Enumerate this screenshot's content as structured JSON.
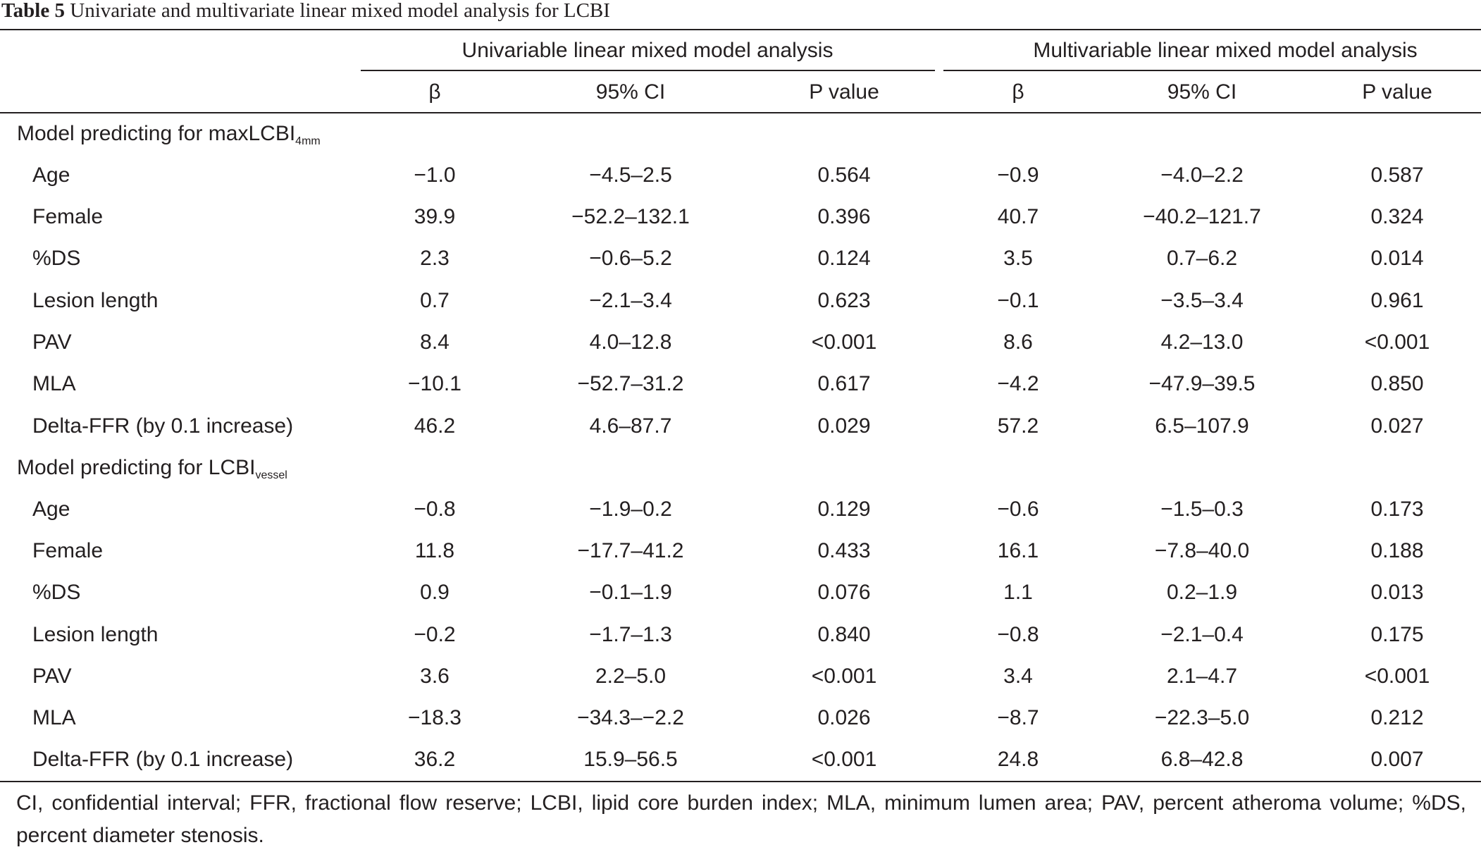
{
  "caption": {
    "label": "Table 5",
    "title": " Univariate and multivariate linear mixed model analysis for LCBI"
  },
  "header": {
    "group_univariable": "Univariable linear mixed model analysis",
    "group_multivariable": "Multivariable linear mixed model analysis",
    "uni_beta": "β",
    "uni_ci": "95% CI",
    "uni_p": "P value",
    "multi_beta": "β",
    "multi_ci": "95% CI",
    "multi_p": "P value"
  },
  "sections": [
    {
      "title": "Model predicting for maxLCBI",
      "title_sub": "4mm",
      "rows": [
        {
          "variable": "Age",
          "uni_beta": "−1.0",
          "uni_ci": "−4.5–2.5",
          "uni_p": "0.564",
          "multi_beta": "−0.9",
          "multi_ci": "−4.0–2.2",
          "multi_p": "0.587"
        },
        {
          "variable": "Female",
          "uni_beta": "39.9",
          "uni_ci": "−52.2–132.1",
          "uni_p": "0.396",
          "multi_beta": "40.7",
          "multi_ci": "−40.2–121.7",
          "multi_p": "0.324"
        },
        {
          "variable": "%DS",
          "uni_beta": "2.3",
          "uni_ci": "−0.6–5.2",
          "uni_p": "0.124",
          "multi_beta": "3.5",
          "multi_ci": "0.7–6.2",
          "multi_p": "0.014"
        },
        {
          "variable": "Lesion length",
          "uni_beta": "0.7",
          "uni_ci": "−2.1–3.4",
          "uni_p": "0.623",
          "multi_beta": "−0.1",
          "multi_ci": "−3.5–3.4",
          "multi_p": "0.961"
        },
        {
          "variable": "PAV",
          "uni_beta": "8.4",
          "uni_ci": "4.0–12.8",
          "uni_p": "<0.001",
          "multi_beta": "8.6",
          "multi_ci": "4.2–13.0",
          "multi_p": "<0.001"
        },
        {
          "variable": "MLA",
          "uni_beta": "−10.1",
          "uni_ci": "−52.7–31.2",
          "uni_p": "0.617",
          "multi_beta": "−4.2",
          "multi_ci": "−47.9–39.5",
          "multi_p": "0.850"
        },
        {
          "variable": "Delta-FFR (by 0.1 increase)",
          "uni_beta": "46.2",
          "uni_ci": "4.6–87.7",
          "uni_p": "0.029",
          "multi_beta": "57.2",
          "multi_ci": "6.5–107.9",
          "multi_p": "0.027"
        }
      ]
    },
    {
      "title": "Model predicting for LCBI",
      "title_sub": "vessel",
      "rows": [
        {
          "variable": "Age",
          "uni_beta": "−0.8",
          "uni_ci": "−1.9–0.2",
          "uni_p": "0.129",
          "multi_beta": "−0.6",
          "multi_ci": "−1.5–0.3",
          "multi_p": "0.173"
        },
        {
          "variable": "Female",
          "uni_beta": "11.8",
          "uni_ci": "−17.7–41.2",
          "uni_p": "0.433",
          "multi_beta": "16.1",
          "multi_ci": "−7.8–40.0",
          "multi_p": "0.188"
        },
        {
          "variable": "%DS",
          "uni_beta": "0.9",
          "uni_ci": "−0.1–1.9",
          "uni_p": "0.076",
          "multi_beta": "1.1",
          "multi_ci": "0.2–1.9",
          "multi_p": "0.013"
        },
        {
          "variable": "Lesion length",
          "uni_beta": "−0.2",
          "uni_ci": "−1.7–1.3",
          "uni_p": "0.840",
          "multi_beta": "−0.8",
          "multi_ci": "−2.1–0.4",
          "multi_p": "0.175"
        },
        {
          "variable": "PAV",
          "uni_beta": "3.6",
          "uni_ci": "2.2–5.0",
          "uni_p": "<0.001",
          "multi_beta": "3.4",
          "multi_ci": "2.1–4.7",
          "multi_p": "<0.001"
        },
        {
          "variable": "MLA",
          "uni_beta": "−18.3",
          "uni_ci": "−34.3–−2.2",
          "uni_p": "0.026",
          "multi_beta": "−8.7",
          "multi_ci": "−22.3–5.0",
          "multi_p": "0.212"
        },
        {
          "variable": "Delta-FFR (by 0.1 increase)",
          "uni_beta": "36.2",
          "uni_ci": "15.9–56.5",
          "uni_p": "<0.001",
          "multi_beta": "24.8",
          "multi_ci": "6.8–42.8",
          "multi_p": "0.007"
        }
      ]
    }
  ],
  "footnote": "CI, confidential interval; FFR, fractional flow reserve; LCBI, lipid core burden index; MLA, minimum lumen area; PAV, percent atheroma volume; %DS, percent diameter stenosis."
}
